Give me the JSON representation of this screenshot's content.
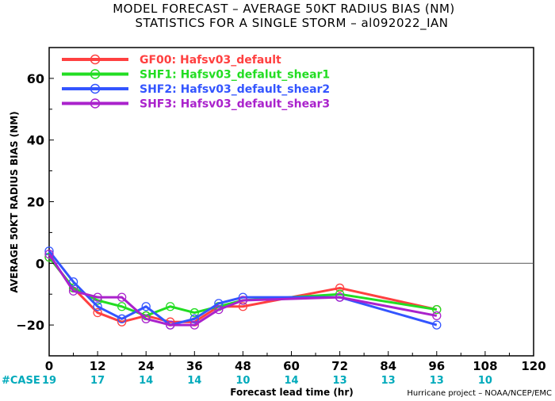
{
  "chart_data": {
    "type": "line",
    "title": "MODEL FORECAST – AVERAGE 50KT RADIUS BIAS (NM)",
    "subtitle": "STATISTICS FOR A SINGLE STORM – al092022_IAN",
    "xlabel": "Forecast lead time (hr)",
    "ylabel": "AVERAGE 50KT RADIUS BIAS (NM)",
    "xlim": [
      0,
      120
    ],
    "ylim": [
      -30,
      70
    ],
    "xticks": [
      "0",
      "12",
      "24",
      "36",
      "48",
      "60",
      "72",
      "84",
      "96",
      "108",
      "120"
    ],
    "yticks": [
      "−20",
      "0",
      "20",
      "40",
      "60"
    ],
    "zero_line": true,
    "legend_position": "top-left",
    "series": [
      {
        "name": "GF00: Hafsv03_default",
        "color": "#ff4040",
        "x": [
          0,
          6,
          12,
          18,
          24,
          30,
          36,
          42,
          48,
          72,
          96
        ],
        "y": [
          2,
          -8,
          -16,
          -19,
          -17,
          -19,
          -19,
          -14,
          -14,
          -8,
          -15
        ]
      },
      {
        "name": "SHF1: Hafsv03_defalut_shear1",
        "color": "#22dd22",
        "x": [
          0,
          6,
          12,
          18,
          24,
          30,
          36,
          42,
          48,
          72,
          96
        ],
        "y": [
          2,
          -8,
          -12,
          -14,
          -17,
          -14,
          -16,
          -14,
          -12,
          -10,
          -15
        ]
      },
      {
        "name": "SHF2: Hafsv03_default_shear2",
        "color": "#3355ff",
        "x": [
          0,
          6,
          12,
          18,
          24,
          30,
          36,
          42,
          48,
          72,
          96
        ],
        "y": [
          4,
          -6,
          -14,
          -18,
          -14,
          -20,
          -18,
          -13,
          -11,
          -11,
          -20
        ]
      },
      {
        "name": "SHF3: Hafsv03_default_shear3",
        "color": "#aa22cc",
        "x": [
          0,
          6,
          12,
          18,
          24,
          30,
          36,
          42,
          48,
          72,
          96
        ],
        "y": [
          3,
          -9,
          -11,
          -11,
          -18,
          -20,
          -20,
          -15,
          -12,
          -11,
          -17
        ]
      }
    ],
    "case_label": "#CASE",
    "case_counts": [
      {
        "x": 0,
        "label": "19"
      },
      {
        "x": 12,
        "label": "17"
      },
      {
        "x": 24,
        "label": "14"
      },
      {
        "x": 36,
        "label": "14"
      },
      {
        "x": 48,
        "label": "10"
      },
      {
        "x": 60,
        "label": "14"
      },
      {
        "x": 72,
        "label": "13"
      },
      {
        "x": 84,
        "label": "13"
      },
      {
        "x": 96,
        "label": "13"
      },
      {
        "x": 108,
        "label": "10"
      }
    ],
    "case_color": "#00aabb"
  },
  "credit": "Hurricane project – NOAA/NCEP/EMC"
}
